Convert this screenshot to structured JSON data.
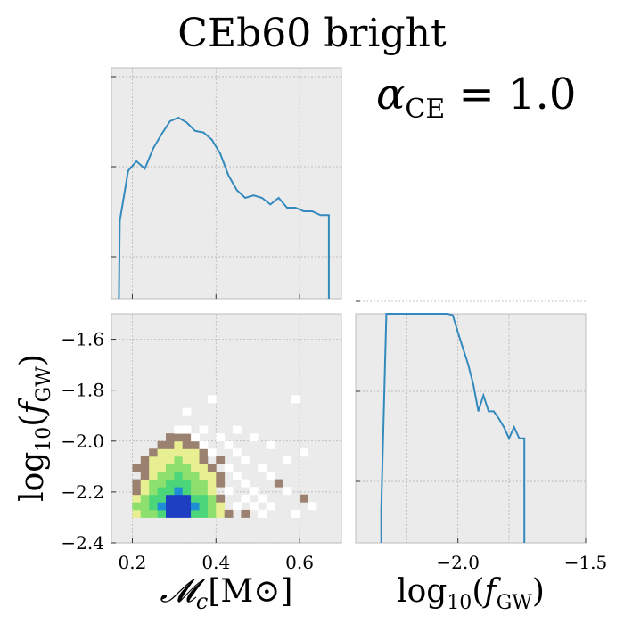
{
  "figure": {
    "title": "CEb60 bright",
    "annotation": "αCE = 1.0",
    "annotation_symbol": "α",
    "annotation_subscript": "CE",
    "annotation_value": " = 1.0"
  },
  "colors": {
    "panel_bg": "#ebebeb",
    "line": "#348abd",
    "grid": "#b0b0b0",
    "heat_low": "#ffffff",
    "heat_mid1": "#9b8270",
    "heat_mid2": "#e8ef92",
    "heat_mid3": "#4cd67a",
    "heat_high": "#1f3fc2"
  },
  "chart_data": [
    {
      "type": "line",
      "panel": "chirp-mass-marginal",
      "x": [
        0.17,
        0.19,
        0.21,
        0.23,
        0.25,
        0.27,
        0.29,
        0.31,
        0.33,
        0.35,
        0.37,
        0.39,
        0.41,
        0.43,
        0.45,
        0.47,
        0.49,
        0.51,
        0.53,
        0.55,
        0.57,
        0.59,
        0.61,
        0.63,
        0.65,
        0.67
      ],
      "values": [
        25,
        90,
        115,
        95,
        160,
        230,
        320,
        350,
        310,
        250,
        240,
        200,
        140,
        80,
        55,
        45,
        48,
        45,
        38,
        45,
        35,
        35,
        32,
        32,
        29,
        29
      ],
      "ylabel": "",
      "xlabel": "",
      "xlim": [
        0.15,
        0.7
      ],
      "yscale": "log",
      "grid": true
    },
    {
      "type": "heatmap",
      "panel": "joint-density",
      "xlabel": "𝓜c[M⊙]",
      "xlabel_main": "𝓜",
      "xlabel_sub": "c",
      "xlabel_unit": "[M⊙]",
      "ylabel": "log10(fGW)",
      "xlim": [
        0.15,
        0.7
      ],
      "ylim": [
        -2.4,
        -1.5
      ],
      "xticks": [
        "0.2",
        "0.4",
        "0.6"
      ],
      "yticks": [
        "−2.4",
        "−2.2",
        "−2.0",
        "−1.8",
        "−1.6"
      ],
      "bin_width": [
        0.02,
        0.03
      ],
      "cells": [
        [
          0.2,
          -2.3,
          2
        ],
        [
          0.22,
          -2.3,
          3
        ],
        [
          0.24,
          -2.3,
          3
        ],
        [
          0.26,
          -2.3,
          4
        ],
        [
          0.28,
          -2.3,
          5
        ],
        [
          0.3,
          -2.3,
          5
        ],
        [
          0.32,
          -2.3,
          5
        ],
        [
          0.34,
          -2.3,
          4
        ],
        [
          0.36,
          -2.3,
          4
        ],
        [
          0.38,
          -2.3,
          3
        ],
        [
          0.4,
          -2.3,
          2
        ],
        [
          0.42,
          -2.3,
          1
        ],
        [
          0.46,
          -2.3,
          1
        ],
        [
          0.5,
          -2.3,
          0
        ],
        [
          0.58,
          -2.3,
          0
        ],
        [
          0.2,
          -2.27,
          3
        ],
        [
          0.22,
          -2.27,
          3
        ],
        [
          0.24,
          -2.27,
          4
        ],
        [
          0.26,
          -2.27,
          5
        ],
        [
          0.28,
          -2.27,
          5
        ],
        [
          0.3,
          -2.27,
          5
        ],
        [
          0.32,
          -2.27,
          5
        ],
        [
          0.34,
          -2.27,
          5
        ],
        [
          0.36,
          -2.27,
          4
        ],
        [
          0.38,
          -2.27,
          3
        ],
        [
          0.4,
          -2.27,
          2
        ],
        [
          0.44,
          -2.27,
          0
        ],
        [
          0.48,
          -2.27,
          0
        ],
        [
          0.52,
          -2.27,
          0
        ],
        [
          0.62,
          -2.27,
          0
        ],
        [
          0.2,
          -2.24,
          2
        ],
        [
          0.22,
          -2.24,
          3
        ],
        [
          0.24,
          -2.24,
          4
        ],
        [
          0.26,
          -2.24,
          4
        ],
        [
          0.28,
          -2.24,
          5
        ],
        [
          0.3,
          -2.24,
          5
        ],
        [
          0.32,
          -2.24,
          5
        ],
        [
          0.34,
          -2.24,
          4
        ],
        [
          0.36,
          -2.24,
          4
        ],
        [
          0.38,
          -2.24,
          3
        ],
        [
          0.4,
          -2.24,
          1
        ],
        [
          0.46,
          -2.24,
          0
        ],
        [
          0.5,
          -2.24,
          0
        ],
        [
          0.6,
          -2.24,
          1
        ],
        [
          0.2,
          -2.21,
          1
        ],
        [
          0.22,
          -2.21,
          2
        ],
        [
          0.24,
          -2.21,
          3
        ],
        [
          0.26,
          -2.21,
          4
        ],
        [
          0.28,
          -2.21,
          4
        ],
        [
          0.3,
          -2.21,
          5
        ],
        [
          0.32,
          -2.21,
          4
        ],
        [
          0.34,
          -2.21,
          3
        ],
        [
          0.36,
          -2.21,
          3
        ],
        [
          0.38,
          -2.21,
          2
        ],
        [
          0.42,
          -2.21,
          0
        ],
        [
          0.48,
          -2.21,
          0
        ],
        [
          0.56,
          -2.21,
          0
        ],
        [
          0.2,
          -2.18,
          1
        ],
        [
          0.22,
          -2.18,
          2
        ],
        [
          0.24,
          -2.18,
          3
        ],
        [
          0.26,
          -2.18,
          3
        ],
        [
          0.28,
          -2.18,
          4
        ],
        [
          0.3,
          -2.18,
          4
        ],
        [
          0.32,
          -2.18,
          4
        ],
        [
          0.34,
          -2.18,
          3
        ],
        [
          0.36,
          -2.18,
          3
        ],
        [
          0.38,
          -2.18,
          2
        ],
        [
          0.4,
          -2.18,
          1
        ],
        [
          0.46,
          -2.18,
          0
        ],
        [
          0.54,
          -2.18,
          1
        ],
        [
          0.22,
          -2.15,
          1
        ],
        [
          0.24,
          -2.15,
          2
        ],
        [
          0.26,
          -2.15,
          3
        ],
        [
          0.28,
          -2.15,
          3
        ],
        [
          0.3,
          -2.15,
          4
        ],
        [
          0.32,
          -2.15,
          3
        ],
        [
          0.34,
          -2.15,
          3
        ],
        [
          0.36,
          -2.15,
          2
        ],
        [
          0.38,
          -2.15,
          2
        ],
        [
          0.4,
          -2.15,
          1
        ],
        [
          0.44,
          -2.15,
          0
        ],
        [
          0.52,
          -2.15,
          0
        ],
        [
          0.2,
          -2.12,
          1
        ],
        [
          0.22,
          -2.12,
          1
        ],
        [
          0.24,
          -2.12,
          2
        ],
        [
          0.26,
          -2.12,
          2
        ],
        [
          0.28,
          -2.12,
          3
        ],
        [
          0.3,
          -2.12,
          3
        ],
        [
          0.32,
          -2.12,
          3
        ],
        [
          0.34,
          -2.12,
          2
        ],
        [
          0.36,
          -2.12,
          2
        ],
        [
          0.38,
          -2.12,
          1
        ],
        [
          0.42,
          -2.12,
          0
        ],
        [
          0.5,
          -2.12,
          0
        ],
        [
          0.22,
          -2.09,
          1
        ],
        [
          0.24,
          -2.09,
          2
        ],
        [
          0.26,
          -2.09,
          2
        ],
        [
          0.28,
          -2.09,
          2
        ],
        [
          0.3,
          -2.09,
          3
        ],
        [
          0.32,
          -2.09,
          2
        ],
        [
          0.34,
          -2.09,
          2
        ],
        [
          0.36,
          -2.09,
          1
        ],
        [
          0.4,
          -2.09,
          1
        ],
        [
          0.46,
          -2.09,
          0
        ],
        [
          0.56,
          -2.09,
          0
        ],
        [
          0.24,
          -2.06,
          1
        ],
        [
          0.26,
          -2.06,
          2
        ],
        [
          0.28,
          -2.06,
          2
        ],
        [
          0.3,
          -2.06,
          2
        ],
        [
          0.32,
          -2.06,
          2
        ],
        [
          0.34,
          -2.06,
          2
        ],
        [
          0.36,
          -2.06,
          1
        ],
        [
          0.38,
          -2.06,
          0
        ],
        [
          0.44,
          -2.06,
          0
        ],
        [
          0.6,
          -2.06,
          0
        ],
        [
          0.26,
          -2.03,
          1
        ],
        [
          0.28,
          -2.03,
          1
        ],
        [
          0.3,
          -2.03,
          2
        ],
        [
          0.32,
          -2.03,
          1
        ],
        [
          0.34,
          -2.03,
          1
        ],
        [
          0.36,
          -2.03,
          0
        ],
        [
          0.42,
          -2.03,
          0
        ],
        [
          0.52,
          -2.03,
          0
        ],
        [
          0.28,
          -2.0,
          1
        ],
        [
          0.3,
          -2.0,
          1
        ],
        [
          0.32,
          -2.0,
          1
        ],
        [
          0.34,
          -2.0,
          0
        ],
        [
          0.4,
          -2.0,
          0
        ],
        [
          0.48,
          -2.0,
          0
        ],
        [
          0.3,
          -1.97,
          0
        ],
        [
          0.32,
          -1.97,
          0
        ],
        [
          0.36,
          -1.97,
          0
        ],
        [
          0.44,
          -1.97,
          0
        ],
        [
          0.32,
          -1.9,
          0
        ],
        [
          0.38,
          -1.85,
          0
        ],
        [
          0.58,
          -1.85,
          0
        ]
      ]
    },
    {
      "type": "line",
      "panel": "frequency-marginal",
      "x": [
        -2.3,
        -2.28,
        -2.26,
        -2.24,
        -2.22,
        -2.2,
        -2.18,
        -2.16,
        -2.14,
        -2.12,
        -2.1,
        -2.08,
        -2.06,
        -2.04,
        -2.02,
        -2.0,
        -1.98,
        -1.96,
        -1.94,
        -1.92,
        -1.9,
        -1.88,
        -1.86,
        -1.84,
        -1.82,
        -1.8,
        -1.78,
        -1.76,
        -1.74
      ],
      "values": [
        0.5,
        180,
        200,
        190,
        175,
        160,
        155,
        150,
        140,
        125,
        110,
        105,
        100,
        90,
        70,
        45,
        30,
        20,
        12,
        6,
        9,
        6,
        6,
        5,
        4,
        3,
        4,
        3,
        3
      ],
      "xlabel": "log10(fGW)",
      "xlabel_main": "log",
      "xlabel_sub": "10",
      "xlabel_rest": "(f",
      "xlabel_sub2": "GW",
      "xlabel_close": ")",
      "xlim": [
        -2.4,
        -1.5
      ],
      "xticks": [
        "−2.0",
        "−1.5"
      ],
      "yscale": "log",
      "grid": true
    }
  ]
}
